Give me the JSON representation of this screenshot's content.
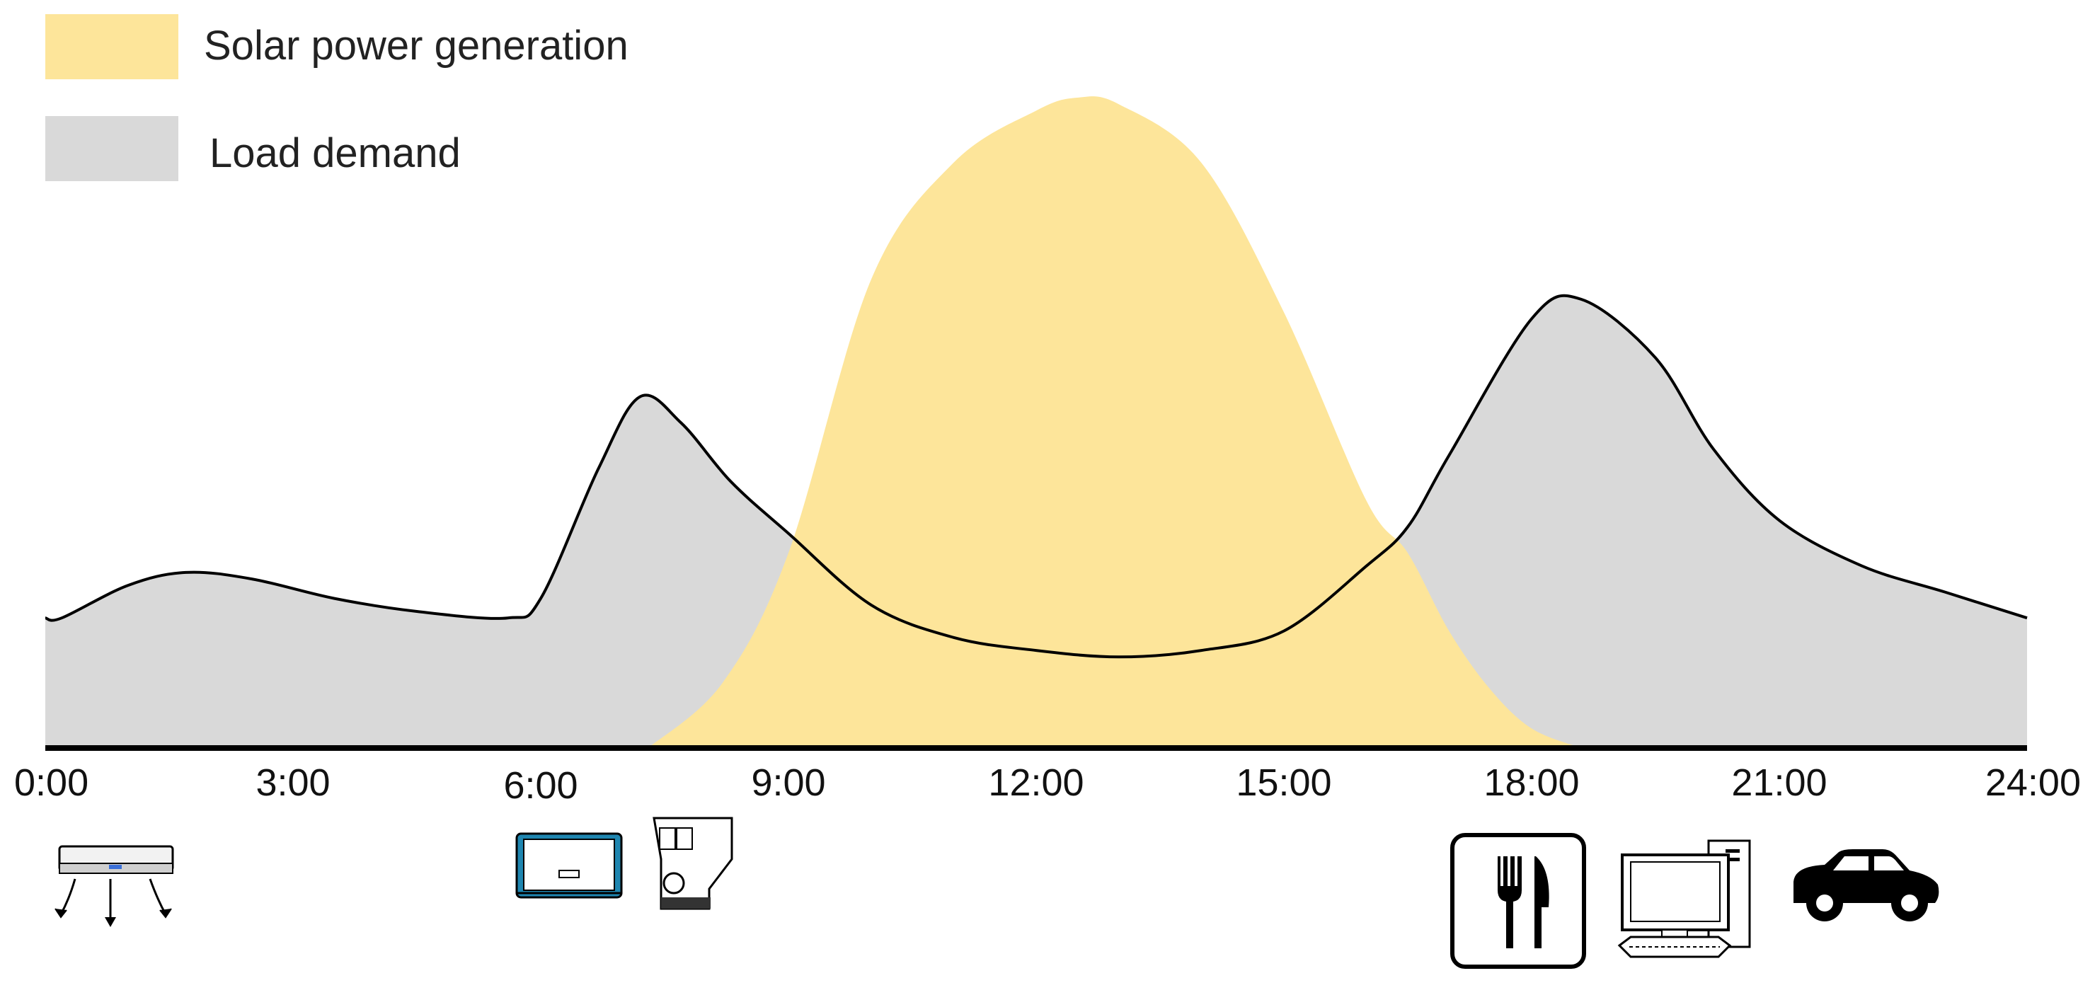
{
  "chart_data": {
    "type": "area",
    "title": "",
    "xlabel": "",
    "ylabel": "",
    "xlim": [
      0,
      24
    ],
    "ylim": [
      0,
      1
    ],
    "grid": false,
    "legend_position": "top-left",
    "tick_labels": [
      "0:00",
      "3:00",
      "6:00",
      "9:00",
      "12:00",
      "15:00",
      "18:00",
      "21:00",
      "24:00"
    ],
    "series": [
      {
        "name": "Solar power generation",
        "color": "#fde59a",
        "points": [
          [
            7.3,
            0
          ],
          [
            8.2,
            0.1
          ],
          [
            9,
            0.3
          ],
          [
            10,
            0.72
          ],
          [
            11,
            0.9
          ],
          [
            12,
            0.98
          ],
          [
            12.5,
            1.0
          ],
          [
            13,
            0.99
          ],
          [
            14,
            0.9
          ],
          [
            15,
            0.67
          ],
          [
            16,
            0.38
          ],
          [
            16.5,
            0.3
          ],
          [
            17,
            0.18
          ],
          [
            17.5,
            0.09
          ],
          [
            18,
            0.03
          ],
          [
            18.6,
            0
          ]
        ]
      },
      {
        "name": "Load demand",
        "color": "#d9d9d9",
        "points": [
          [
            0,
            0.2
          ],
          [
            0.2,
            0.2
          ],
          [
            1,
            0.25
          ],
          [
            1.7,
            0.27
          ],
          [
            2.5,
            0.26
          ],
          [
            3.5,
            0.23
          ],
          [
            4.5,
            0.21
          ],
          [
            5.6,
            0.2
          ],
          [
            6,
            0.23
          ],
          [
            6.7,
            0.43
          ],
          [
            7.2,
            0.54
          ],
          [
            7.7,
            0.5
          ],
          [
            8.3,
            0.41
          ],
          [
            9,
            0.33
          ],
          [
            10,
            0.22
          ],
          [
            11,
            0.17
          ],
          [
            12,
            0.15
          ],
          [
            13,
            0.14
          ],
          [
            14,
            0.15
          ],
          [
            15,
            0.18
          ],
          [
            16,
            0.28
          ],
          [
            16.5,
            0.34
          ],
          [
            17,
            0.45
          ],
          [
            18,
            0.66
          ],
          [
            18.6,
            0.69
          ],
          [
            19.5,
            0.6
          ],
          [
            20.2,
            0.46
          ],
          [
            21,
            0.35
          ],
          [
            22,
            0.28
          ],
          [
            23,
            0.24
          ],
          [
            24,
            0.2
          ]
        ]
      }
    ],
    "icons": [
      {
        "name": "air-conditioner-icon",
        "hour": 0.8
      },
      {
        "name": "washing-machine-icon",
        "hour": 6.4
      },
      {
        "name": "coffee-machine-icon",
        "hour": 7.6
      },
      {
        "name": "restaurant-cutlery-icon",
        "hour": 17.6
      },
      {
        "name": "desktop-computer-icon",
        "hour": 19.5
      },
      {
        "name": "car-icon",
        "hour": 21.2
      }
    ]
  }
}
